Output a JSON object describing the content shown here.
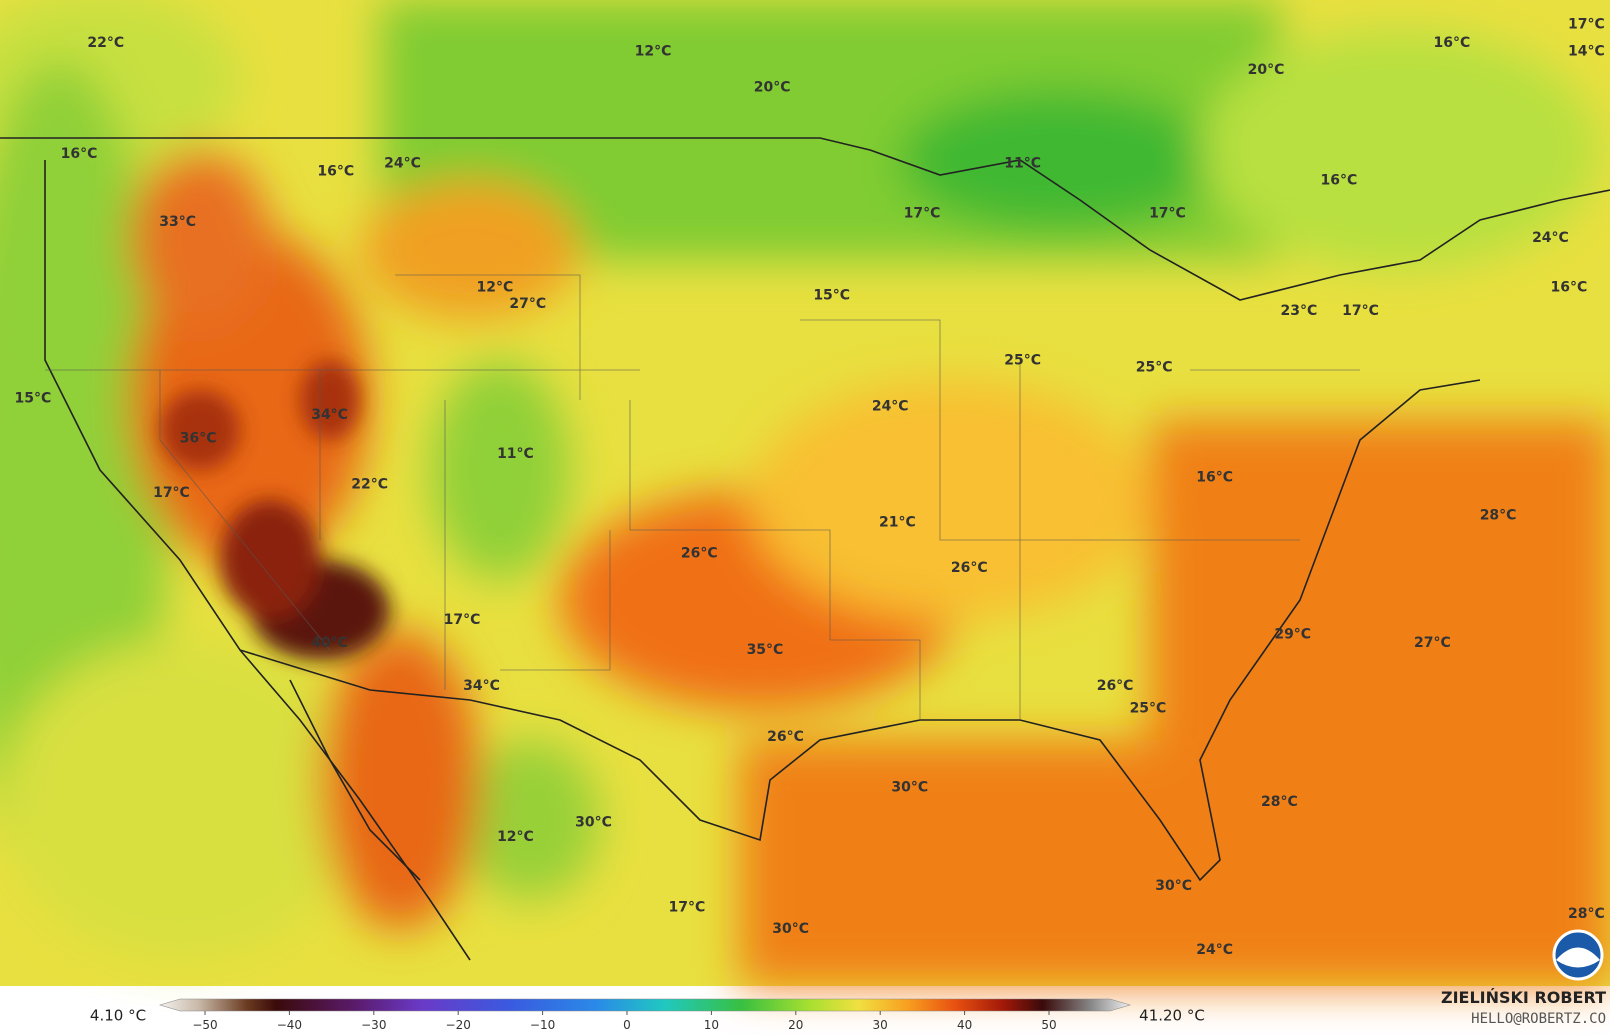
{
  "map": {
    "labels": [
      "22°C",
      "12°C",
      "20°C",
      "20°C",
      "16°C",
      "17°C",
      "14°C",
      "16°C",
      "16°C",
      "24°C",
      "11°C",
      "33°C",
      "17°C",
      "17°C",
      "16°C",
      "24°C",
      "16°C",
      "12°C",
      "27°C",
      "15°C",
      "23°C",
      "17°C",
      "25°C",
      "25°C",
      "15°C",
      "34°C",
      "24°C",
      "36°C",
      "11°C",
      "16°C",
      "22°C",
      "17°C",
      "28°C",
      "21°C",
      "26°C",
      "26°C",
      "17°C",
      "29°C",
      "40°C",
      "35°C",
      "27°C",
      "34°C",
      "26°C",
      "25°C",
      "26°C",
      "30°C",
      "28°C",
      "30°C",
      "12°C",
      "30°C",
      "17°C",
      "30°C",
      "28°C",
      "24°C"
    ],
    "colorbar": {
      "min_label": "4.10 °C",
      "max_label": "41.20 °C",
      "ticks": [
        "−50",
        "−40",
        "−30",
        "−20",
        "−10",
        "0",
        "10",
        "20",
        "30",
        "40",
        "50"
      ]
    },
    "credit": {
      "name": "ZIELIŃSKI ROBERT",
      "contact": "HELLO@ROBERTZ.CO"
    }
  }
}
